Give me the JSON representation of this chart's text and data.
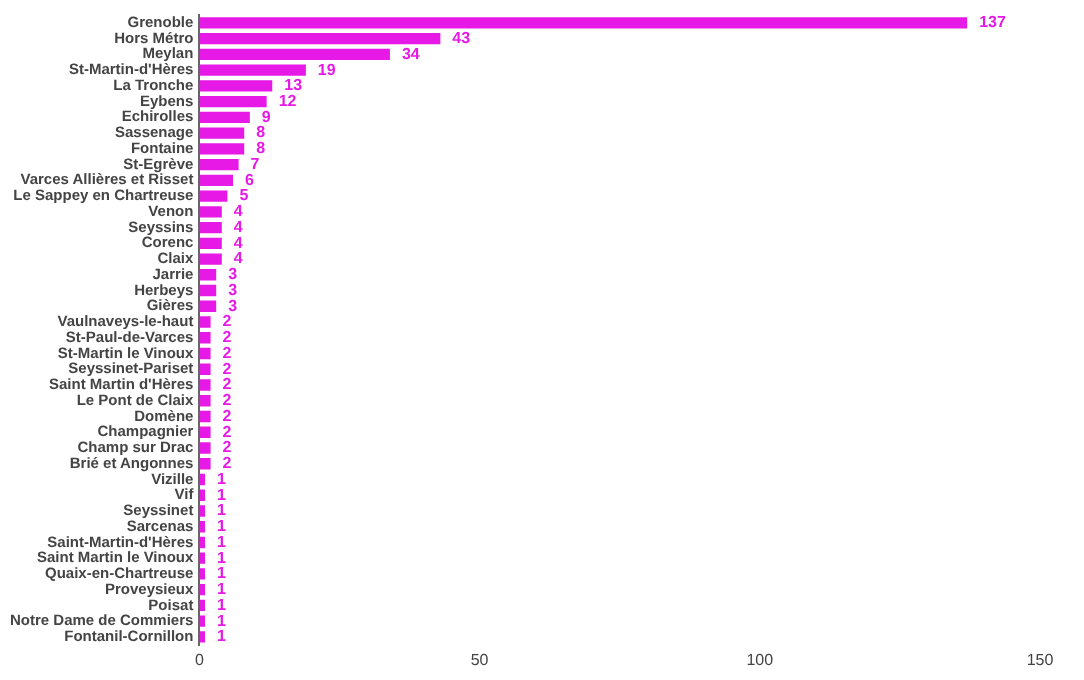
{
  "chart_data": {
    "type": "bar",
    "orientation": "horizontal",
    "categories": [
      "Grenoble",
      "Hors Métro",
      "Meylan",
      "St-Martin-d'Hères",
      "La Tronche",
      "Eybens",
      "Echirolles",
      "Sassenage",
      "Fontaine",
      "St-Egrève",
      "Varces Allières et Risset",
      "Le Sappey en Chartreuse",
      "Venon",
      "Seyssins",
      "Corenc",
      "Claix",
      "Jarrie",
      "Herbeys",
      "Gières",
      "Vaulnaveys-le-haut",
      "St-Paul-de-Varces",
      "St-Martin le Vinoux",
      "Seyssinet-Pariset",
      "Saint Martin d'Hères",
      "Le Pont de Claix",
      "Domène",
      "Champagnier",
      "Champ sur Drac",
      "Brié et Angonnes",
      "Vizille",
      "Vif",
      "Seyssinet",
      "Sarcenas",
      "Saint-Martin-d'Hères",
      "Saint Martin le Vinoux",
      "Quaix-en-Chartreuse",
      "Proveysieux",
      "Poisat",
      "Notre Dame de Commiers",
      "Fontanil-Cornillon"
    ],
    "values": [
      137,
      43,
      34,
      19,
      13,
      12,
      9,
      8,
      8,
      7,
      6,
      5,
      4,
      4,
      4,
      4,
      3,
      3,
      3,
      2,
      2,
      2,
      2,
      2,
      2,
      2,
      2,
      2,
      2,
      1,
      1,
      1,
      1,
      1,
      1,
      1,
      1,
      1,
      1,
      1
    ],
    "color": "#e619e6",
    "xlim": [
      0,
      150
    ],
    "xticks": [
      0,
      50,
      100,
      150
    ],
    "grid": false,
    "data_labels": true
  }
}
